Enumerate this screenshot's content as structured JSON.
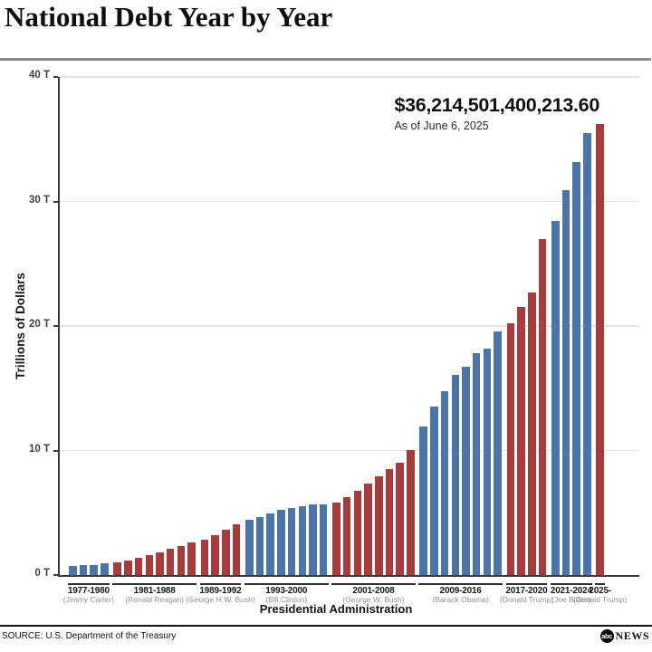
{
  "header": {
    "title": "National Debt Year by Year"
  },
  "annotation": {
    "amount": "$36,214,501,400,213.60",
    "as_of": "As of June 6, 2025"
  },
  "chart_data": {
    "type": "bar",
    "title": "National Debt Year by Year",
    "xlabel": "Presidential Administration",
    "ylabel": "Trillions of Dollars",
    "ylim": [
      0,
      40
    ],
    "grid": "horizontal",
    "yticks": [
      {
        "value": 0,
        "label": "0 T"
      },
      {
        "value": 10,
        "label": "10 T"
      },
      {
        "value": 20,
        "label": "20 T"
      },
      {
        "value": 30,
        "label": "30 T"
      },
      {
        "value": 40,
        "label": "40 T"
      }
    ],
    "colors": {
      "democrat": "#4d74a8",
      "republican": "#a63c3d"
    },
    "groups": [
      {
        "range": "1977-1980",
        "president": "(Jimmy Carter)",
        "party": "democrat",
        "values": [
          0.7,
          0.77,
          0.83,
          0.91
        ]
      },
      {
        "range": "1981-1988",
        "president": "(Ronald Reagan)",
        "party": "republican",
        "values": [
          1.0,
          1.14,
          1.38,
          1.57,
          1.82,
          2.13,
          2.35,
          2.6
        ]
      },
      {
        "range": "1989-1992",
        "president": "(George H.W. Bush)",
        "party": "republican",
        "values": [
          2.86,
          3.23,
          3.67,
          4.07
        ]
      },
      {
        "range": "1993-2000",
        "president": "(Bill Clinton)",
        "party": "democrat",
        "values": [
          4.41,
          4.69,
          4.97,
          5.22,
          5.41,
          5.53,
          5.66,
          5.67
        ]
      },
      {
        "range": "2001-2008",
        "president": "(George W. Bush)",
        "party": "republican",
        "values": [
          5.81,
          6.23,
          6.78,
          7.38,
          7.93,
          8.51,
          9.01,
          10.02
        ]
      },
      {
        "range": "2009-2016",
        "president": "(Barack Obama)",
        "party": "democrat",
        "values": [
          11.91,
          13.56,
          14.79,
          16.07,
          16.74,
          17.82,
          18.15,
          19.57
        ]
      },
      {
        "range": "2017-2020",
        "president": "(Donald Trump)",
        "party": "republican",
        "values": [
          20.24,
          21.52,
          22.72,
          26.95
        ]
      },
      {
        "range": "2021-2024",
        "president": "(Joe Biden)",
        "party": "democrat",
        "values": [
          28.43,
          30.93,
          33.17,
          35.46
        ]
      },
      {
        "range": "2025-",
        "president": "(Donald Trump)",
        "party": "republican",
        "values": [
          36.21
        ]
      }
    ]
  },
  "footer": {
    "source": "SOURCE: U.S. Department of the Treasury",
    "logo_abc": "abc",
    "logo_news": "NEWS"
  }
}
